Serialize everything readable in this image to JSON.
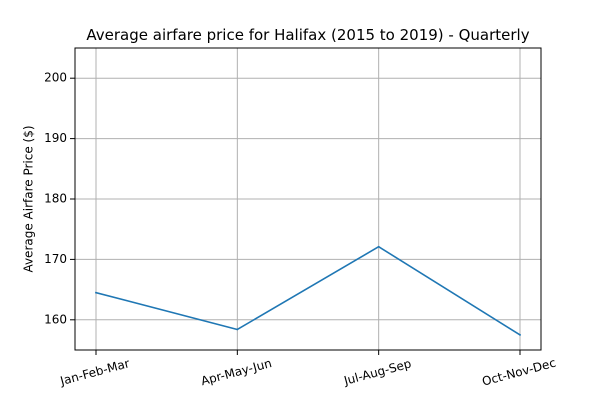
{
  "chart_data": {
    "type": "line",
    "title": "Average airfare price for Halifax (2015 to 2019) - Quarterly",
    "xlabel": "",
    "ylabel": "Average Airfare Price ($)",
    "categories": [
      "Jan-Feb-Mar",
      "Apr-May-Jun",
      "Jul-Aug-Sep",
      "Oct-Nov-Dec"
    ],
    "series": [
      {
        "values": [
          164.5,
          158.4,
          172.1,
          157.5
        ],
        "color": "#1f77b4"
      }
    ],
    "ylim": [
      155,
      205
    ],
    "yticks": [
      160,
      170,
      180,
      190,
      200
    ],
    "grid": true,
    "legend": "none",
    "xtick_rotation_deg": 15
  }
}
